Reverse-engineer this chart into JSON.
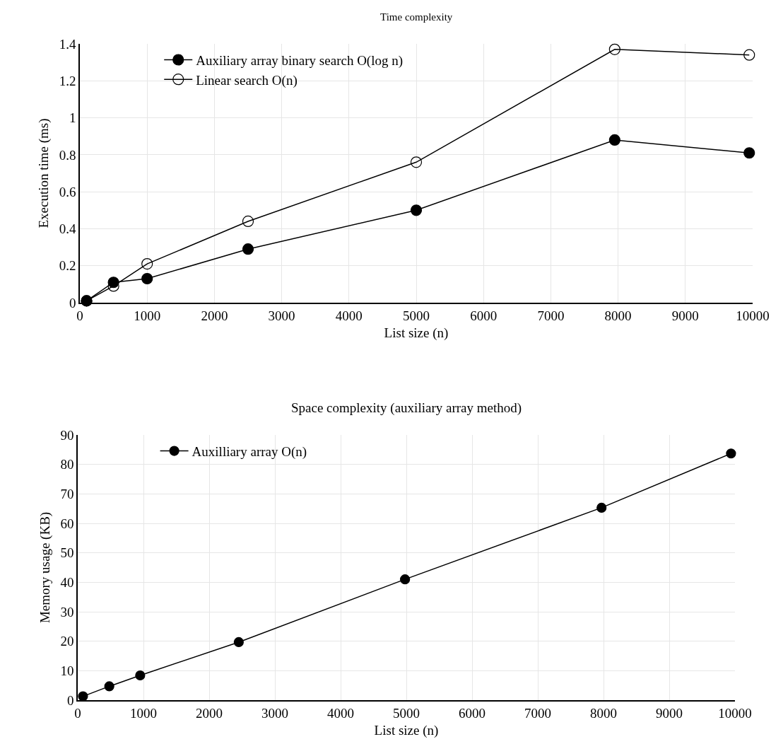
{
  "chart_data": [
    {
      "type": "line",
      "title": "Time complexity",
      "xlabel": "List size (n)",
      "ylabel": "Execution time (ms)",
      "xlim": [
        0,
        10000
      ],
      "xticks": [
        0,
        1000,
        2000,
        3000,
        4000,
        5000,
        6000,
        7000,
        8000,
        9000,
        10000
      ],
      "ylim": [
        0,
        1.4
      ],
      "yticks": [
        0,
        0.2,
        0.4,
        0.6,
        0.8,
        1,
        1.2,
        1.4
      ],
      "grid": true,
      "legend": "top left",
      "marker": "circle",
      "line_style": "solid",
      "series": [
        {
          "name": "Auxiliary array binary search O(log n)",
          "color": "#000000",
          "x": [
            100,
            500,
            1000,
            2500,
            5000,
            7950,
            9950
          ],
          "values": [
            0.01,
            0.11,
            0.13,
            0.29,
            0.5,
            0.88,
            0.81
          ]
        },
        {
          "name": "Linear search O(n)",
          "color": "#000000",
          "x": [
            100,
            500,
            1000,
            2500,
            5000,
            7950,
            9950
          ],
          "values": [
            0.01,
            0.09,
            0.21,
            0.44,
            0.76,
            1.37,
            1.34
          ]
        }
      ]
    },
    {
      "type": "line",
      "title": "Space complexity (auxiliary array method)",
      "xlabel": "List size (n)",
      "ylabel": "Memory usage (KB)",
      "xlim": [
        0,
        10000
      ],
      "xticks": [
        0,
        1000,
        2000,
        3000,
        4000,
        5000,
        6000,
        7000,
        8000,
        9000,
        10000
      ],
      "ylim": [
        0,
        90
      ],
      "yticks": [
        0,
        10,
        20,
        30,
        40,
        50,
        60,
        70,
        80,
        90
      ],
      "grid": true,
      "legend": "top left",
      "marker": "circle",
      "line_style": "solid",
      "series": [
        {
          "name": "Auxilliary array O(n)",
          "color": "#000000",
          "x": [
            80,
            480,
            950,
            2450,
            4980,
            7970,
            9940
          ],
          "values": [
            1.3,
            4.7,
            8.4,
            19.7,
            41.0,
            65.3,
            83.7
          ]
        }
      ]
    }
  ]
}
